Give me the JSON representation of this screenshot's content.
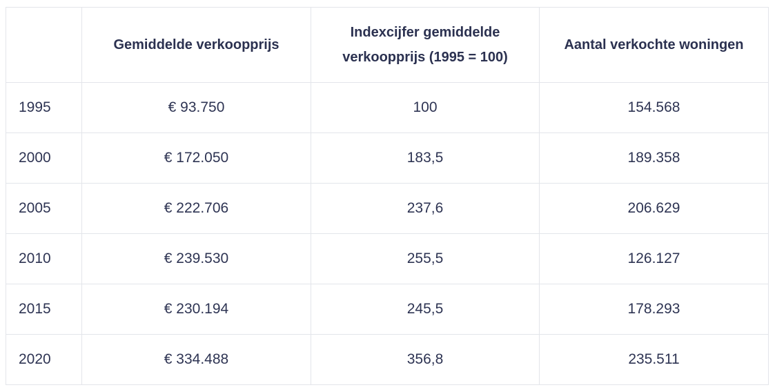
{
  "table": {
    "headers": [
      "",
      "Gemiddelde verkoopprijs",
      "Indexcijfer gemiddelde verkoopprijs (1995 = 100)",
      "Aantal verkochte woningen"
    ],
    "rows": [
      {
        "year": "1995",
        "price": "€ 93.750",
        "index": "100",
        "sold": "154.568"
      },
      {
        "year": "2000",
        "price": "€ 172.050",
        "index": "183,5",
        "sold": "189.358"
      },
      {
        "year": "2005",
        "price": "€ 222.706",
        "index": "237,6",
        "sold": "206.629"
      },
      {
        "year": "2010",
        "price": "€ 239.530",
        "index": "255,5",
        "sold": "126.127"
      },
      {
        "year": "2015",
        "price": "€ 230.194",
        "index": "245,5",
        "sold": "178.293"
      },
      {
        "year": "2020",
        "price": "€ 334.488",
        "index": "356,8",
        "sold": "235.511"
      }
    ]
  }
}
